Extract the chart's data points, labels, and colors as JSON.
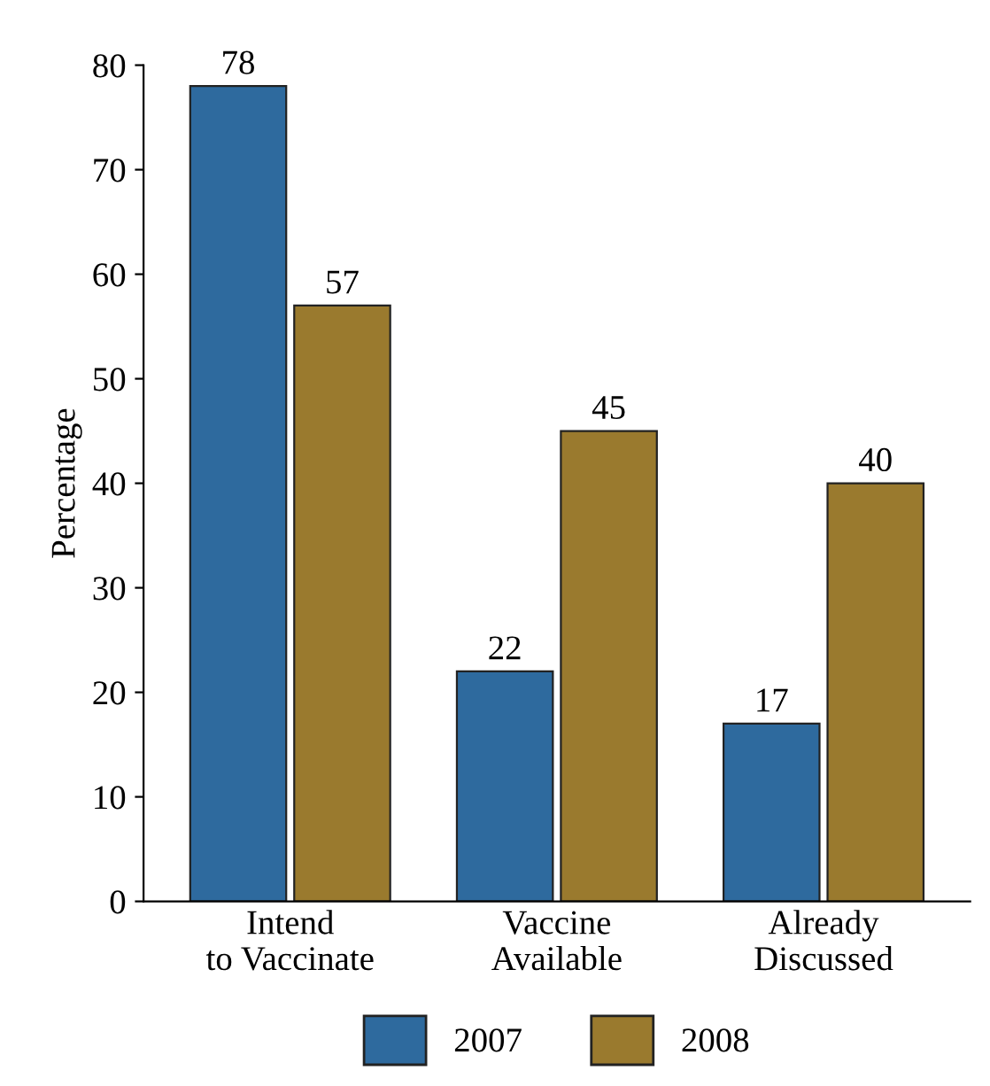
{
  "chart_data": {
    "type": "bar",
    "ylabel": "Percentage",
    "categories": [
      "Intend\nto Vaccinate",
      "Vaccine\nAvailable",
      "Already\nDiscussed"
    ],
    "series": [
      {
        "name": "2007",
        "color": "#2e6a9e",
        "values": [
          78,
          22,
          17
        ]
      },
      {
        "name": "2008",
        "color": "#9a7a2e",
        "values": [
          57,
          45,
          40
        ]
      }
    ],
    "ylim": [
      0,
      80
    ],
    "yticks": [
      0,
      10,
      20,
      30,
      40,
      50,
      60,
      70,
      80
    ],
    "data_labels": true,
    "grid": false,
    "legend": "bottom"
  }
}
